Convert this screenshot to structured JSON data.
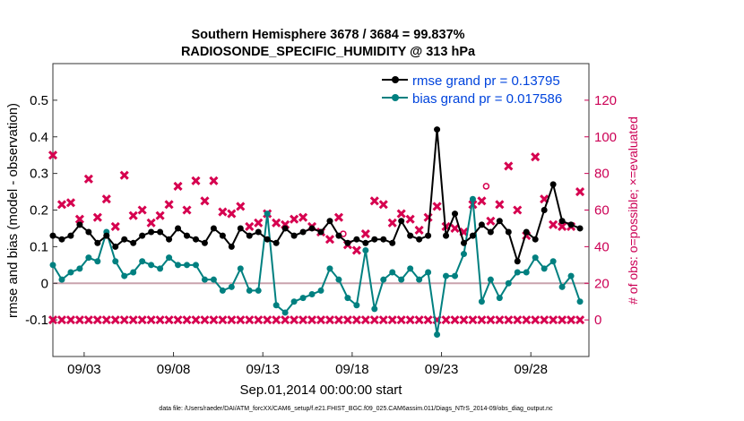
{
  "chart_data": {
    "type": "line",
    "title": "Southern Hemisphere 3678 / 3684 = 99.837%",
    "subtitle": "RADIOSONDE_SPECIFIC_HUMIDITY @ 313 hPa",
    "xlabel": "Sep.01,2014 00:00:00 start",
    "ylabel": "rmse and bias (model - observation)",
    "y2label": "# of obs: o=possible; ×=evaluated",
    "footer": "data file: /Users/raeder/DAI/ATM_forcXX/CAM6_setup/f.e21.FHIST_BGC.f09_025.CAM6assim.011/Diags_NTrS_2014-09/obs_diag_output.nc",
    "xlim": [
      1.25,
      31.25
    ],
    "ylim": [
      -0.2,
      0.6
    ],
    "y2lim": [
      -20,
      140
    ],
    "x_ticks": [
      3,
      8,
      13,
      18,
      23,
      28
    ],
    "x_tick_labels": [
      "09/03",
      "09/08",
      "09/13",
      "09/18",
      "09/23",
      "09/28"
    ],
    "y_ticks": [
      -0.1,
      0,
      0.1,
      0.2,
      0.3,
      0.4,
      0.5
    ],
    "y_tick_labels": [
      "-0.1",
      "0",
      "0.1",
      "0.2",
      "0.3",
      "0.4",
      "0.5"
    ],
    "y2_ticks": [
      0,
      20,
      40,
      60,
      80,
      100,
      120
    ],
    "y2_tick_labels": [
      "0",
      "20",
      "40",
      "60",
      "80",
      "100",
      "120"
    ],
    "legend_position": "top-right",
    "colors": {
      "rmse": "#000000",
      "bias": "#008080",
      "obs": "#d6004f",
      "zero": "#c9a3ad",
      "axis_right": "#cc0055"
    },
    "series": [
      {
        "name": "rmse grand pr = 0.13795",
        "color": "#000000",
        "x": [
          1.25,
          1.75,
          2.25,
          2.75,
          3.25,
          3.75,
          4.25,
          4.75,
          5.25,
          5.75,
          6.25,
          6.75,
          7.25,
          7.75,
          8.25,
          8.75,
          9.25,
          9.75,
          10.25,
          10.75,
          11.25,
          11.75,
          12.25,
          12.75,
          13.25,
          13.75,
          14.25,
          14.75,
          15.25,
          15.75,
          16.25,
          16.75,
          17.25,
          17.75,
          18.25,
          18.75,
          19.25,
          19.75,
          20.25,
          20.75,
          21.25,
          21.75,
          22.25,
          22.75,
          23.25,
          23.75,
          24.25,
          24.75,
          25.25,
          25.75,
          26.25,
          26.75,
          27.25,
          27.75,
          28.25,
          28.75,
          29.25,
          29.75,
          30.25,
          30.75
        ],
        "values": [
          0.13,
          0.12,
          0.13,
          0.16,
          0.14,
          0.11,
          0.13,
          0.1,
          0.12,
          0.11,
          0.13,
          0.14,
          0.14,
          0.12,
          0.15,
          0.13,
          0.12,
          0.11,
          0.15,
          0.13,
          0.1,
          0.15,
          0.13,
          0.14,
          0.12,
          0.11,
          0.15,
          0.13,
          0.14,
          0.15,
          0.14,
          0.17,
          0.13,
          0.11,
          0.12,
          0.11,
          0.12,
          0.12,
          0.11,
          0.17,
          0.13,
          0.12,
          0.13,
          0.42,
          0.13,
          0.19,
          0.11,
          0.13,
          0.16,
          0.14,
          0.17,
          0.14,
          0.06,
          0.14,
          0.12,
          0.2,
          0.27,
          0.17,
          0.16,
          0.15
        ]
      },
      {
        "name": "bias grand pr = 0.017586",
        "color": "#008080",
        "x": [
          1.25,
          1.75,
          2.25,
          2.75,
          3.25,
          3.75,
          4.25,
          4.75,
          5.25,
          5.75,
          6.25,
          6.75,
          7.25,
          7.75,
          8.25,
          8.75,
          9.25,
          9.75,
          10.25,
          10.75,
          11.25,
          11.75,
          12.25,
          12.75,
          13.25,
          13.75,
          14.25,
          14.75,
          15.25,
          15.75,
          16.25,
          16.75,
          17.25,
          17.75,
          18.25,
          18.75,
          19.25,
          19.75,
          20.25,
          20.75,
          21.25,
          21.75,
          22.25,
          22.75,
          23.25,
          23.75,
          24.25,
          24.75,
          25.25,
          25.75,
          26.25,
          26.75,
          27.25,
          27.75,
          28.25,
          28.75,
          29.25,
          29.75,
          30.25,
          30.75
        ],
        "values": [
          0.05,
          0.01,
          0.03,
          0.04,
          0.07,
          0.06,
          0.14,
          0.06,
          0.02,
          0.03,
          0.06,
          0.05,
          0.04,
          0.07,
          0.05,
          0.05,
          0.05,
          0.01,
          0.01,
          -0.02,
          -0.01,
          0.04,
          -0.02,
          -0.02,
          0.19,
          -0.06,
          -0.08,
          -0.05,
          -0.04,
          -0.03,
          -0.02,
          0.04,
          0.01,
          -0.04,
          -0.06,
          0.09,
          -0.07,
          0.01,
          0.03,
          0.01,
          0.04,
          0.01,
          0.03,
          -0.14,
          0.02,
          0.02,
          0.08,
          0.23,
          -0.05,
          0.01,
          -0.04,
          0.0,
          0.03,
          0.03,
          0.07,
          0.04,
          0.06,
          -0.01,
          0.02,
          -0.05
        ]
      },
      {
        "name": "possible obs",
        "color": "#d6004f",
        "marker": "o",
        "axis": "right",
        "x": [
          17.5,
          25.5
        ],
        "values": [
          47,
          73
        ]
      },
      {
        "name": "evaluated obs",
        "color": "#d6004f",
        "marker": "x",
        "axis": "right",
        "x": [
          1.25,
          1.75,
          2.25,
          2.75,
          3.25,
          3.75,
          4.25,
          4.75,
          5.25,
          5.75,
          6.25,
          6.75,
          7.25,
          7.75,
          8.25,
          8.75,
          9.25,
          9.75,
          10.25,
          10.75,
          11.25,
          11.75,
          12.25,
          12.75,
          13.25,
          13.75,
          14.25,
          14.75,
          15.25,
          15.75,
          16.25,
          16.75,
          17.25,
          17.75,
          18.25,
          18.75,
          19.25,
          19.75,
          20.25,
          20.75,
          21.25,
          21.75,
          22.25,
          22.75,
          23.25,
          23.75,
          24.25,
          24.75,
          25.25,
          25.75,
          26.25,
          26.75,
          27.25,
          27.75,
          28.25,
          28.75,
          29.25,
          29.75,
          30.25,
          30.75
        ],
        "values": [
          90,
          63,
          64,
          55,
          77,
          56,
          66,
          51,
          79,
          57,
          60,
          53,
          57,
          63,
          73,
          60,
          76,
          65,
          76,
          59,
          58,
          62,
          51,
          53,
          58,
          53,
          52,
          55,
          56,
          51,
          48,
          44,
          56,
          41,
          38,
          47,
          65,
          63,
          53,
          58,
          55,
          49,
          56,
          62,
          51,
          50,
          48,
          63,
          65,
          54,
          63,
          84,
          60,
          46,
          89,
          66,
          52,
          51,
          51,
          70
        ]
      }
    ]
  }
}
